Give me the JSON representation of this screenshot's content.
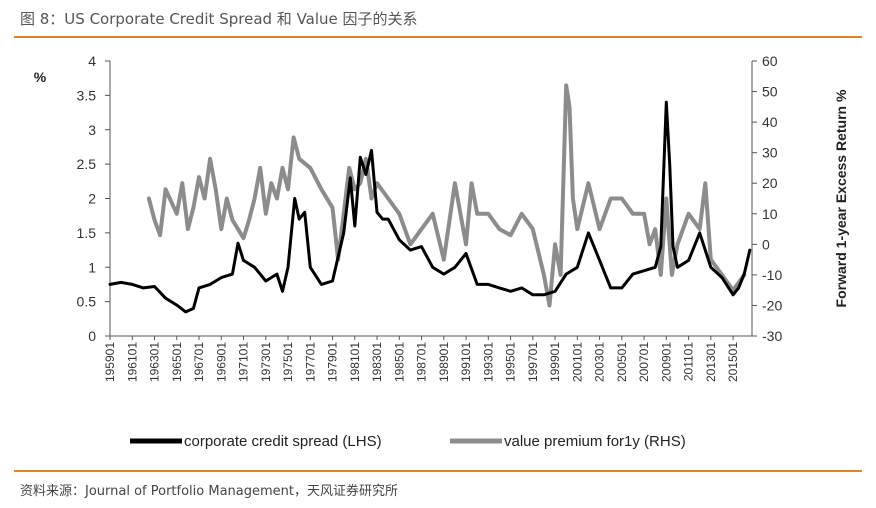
{
  "header": {
    "title": "图 8：US Corporate Credit Spread 和 Value 因子的关系"
  },
  "footer": {
    "source": "资料来源：Journal of Portfolio Management，天风证券研究所"
  },
  "colors": {
    "accent": "#E8821F",
    "spread": "#000000",
    "premium": "#8C8C8C"
  },
  "chart_data": {
    "type": "line",
    "title": "US Corporate Credit Spread 和 Value 因子的关系",
    "ylabel": "%",
    "y2label": "Forward 1-year Excess Return %",
    "ylim": [
      0,
      4
    ],
    "yticks": [
      "0",
      "0.5",
      "1",
      "1.5",
      "2",
      "2.5",
      "3",
      "3.5",
      "4"
    ],
    "y2lim": [
      -30,
      60
    ],
    "y2ticks": [
      "-30",
      "-20",
      "-10",
      "0",
      "10",
      "20",
      "30",
      "40",
      "50",
      "60"
    ],
    "xlim": [
      1959.0,
      2016.7
    ],
    "xticks": [
      "195901",
      "196101",
      "196301",
      "196501",
      "196701",
      "196901",
      "197101",
      "197301",
      "197501",
      "197701",
      "197901",
      "198101",
      "198301",
      "198501",
      "198701",
      "198901",
      "199101",
      "199301",
      "199501",
      "199701",
      "199901",
      "200101",
      "200301",
      "200501",
      "200701",
      "200901",
      "201101",
      "201301",
      "201501"
    ],
    "series": [
      {
        "name": "corporate credit spread (LHS)",
        "axis": "left",
        "x": [
          1959.0,
          1960.0,
          1961.0,
          1962.0,
          1963.0,
          1964.0,
          1965.0,
          1965.8,
          1966.5,
          1967.0,
          1968.0,
          1969.0,
          1970.0,
          1970.5,
          1971.0,
          1972.0,
          1973.0,
          1974.0,
          1974.5,
          1975.0,
          1975.6,
          1976.0,
          1976.5,
          1977.0,
          1978.0,
          1979.0,
          1980.0,
          1980.6,
          1981.0,
          1981.5,
          1982.0,
          1982.5,
          1983.0,
          1983.5,
          1984.0,
          1985.0,
          1986.0,
          1987.0,
          1988.0,
          1989.0,
          1990.0,
          1991.0,
          1992.0,
          1993.0,
          1994.0,
          1995.0,
          1996.0,
          1997.0,
          1998.0,
          1999.0,
          2000.0,
          2001.0,
          2002.0,
          2003.0,
          2004.0,
          2005.0,
          2006.0,
          2007.0,
          2008.0,
          2008.5,
          2009.0,
          2009.3,
          2009.6,
          2010.0,
          2011.0,
          2012.0,
          2013.0,
          2014.0,
          2015.0,
          2015.5,
          2016.0,
          2016.5
        ],
        "values": [
          0.75,
          0.78,
          0.75,
          0.7,
          0.72,
          0.55,
          0.45,
          0.35,
          0.4,
          0.7,
          0.75,
          0.85,
          0.9,
          1.35,
          1.1,
          1.0,
          0.8,
          0.9,
          0.65,
          1.0,
          2.0,
          1.7,
          1.8,
          1.0,
          0.75,
          0.8,
          1.5,
          2.3,
          1.6,
          2.6,
          2.35,
          2.7,
          1.8,
          1.7,
          1.7,
          1.4,
          1.25,
          1.3,
          1.0,
          0.9,
          1.0,
          1.2,
          0.75,
          0.75,
          0.7,
          0.65,
          0.7,
          0.6,
          0.6,
          0.65,
          0.9,
          1.0,
          1.5,
          1.1,
          0.7,
          0.7,
          0.9,
          0.95,
          1.0,
          1.3,
          3.4,
          2.5,
          1.3,
          1.0,
          1.1,
          1.5,
          1.0,
          0.85,
          0.6,
          0.7,
          0.9,
          1.25
        ]
      },
      {
        "name": "value premium for1y (RHS)",
        "axis": "right",
        "x": [
          1962.5,
          1963.0,
          1963.5,
          1964.0,
          1965.0,
          1965.5,
          1966.0,
          1966.5,
          1967.0,
          1967.5,
          1968.0,
          1968.5,
          1969.0,
          1969.5,
          1970.0,
          1971.0,
          1971.5,
          1972.0,
          1972.5,
          1973.0,
          1973.5,
          1974.0,
          1974.5,
          1975.0,
          1975.5,
          1976.0,
          1977.0,
          1978.0,
          1979.0,
          1979.5,
          1980.0,
          1980.5,
          1981.0,
          1981.5,
          1982.0,
          1982.5,
          1983.0,
          1984.0,
          1985.0,
          1986.0,
          1987.0,
          1988.0,
          1989.0,
          1990.0,
          1991.0,
          1991.5,
          1992.0,
          1993.0,
          1994.0,
          1995.0,
          1996.0,
          1997.0,
          1998.0,
          1998.5,
          1999.0,
          1999.5,
          2000.0,
          2000.3,
          2000.6,
          2001.0,
          2002.0,
          2003.0,
          2004.0,
          2005.0,
          2006.0,
          2007.0,
          2007.5,
          2008.0,
          2008.5,
          2009.0,
          2009.5,
          2010.0,
          2011.0,
          2012.0,
          2012.5,
          2013.0,
          2014.0,
          2015.0,
          2016.0
        ],
        "values": [
          15,
          8,
          3,
          18,
          10,
          20,
          5,
          12,
          22,
          15,
          28,
          18,
          5,
          15,
          8,
          2,
          8,
          15,
          25,
          10,
          20,
          15,
          25,
          18,
          35,
          28,
          25,
          18,
          12,
          -5,
          10,
          25,
          18,
          20,
          28,
          15,
          20,
          15,
          10,
          0,
          5,
          10,
          -5,
          20,
          0,
          20,
          10,
          10,
          5,
          3,
          10,
          5,
          -10,
          -20,
          0,
          -10,
          52,
          45,
          15,
          5,
          20,
          5,
          15,
          15,
          10,
          10,
          0,
          5,
          -10,
          15,
          -10,
          0,
          10,
          5,
          20,
          -5,
          -10,
          -15,
          -10
        ]
      }
    ]
  }
}
